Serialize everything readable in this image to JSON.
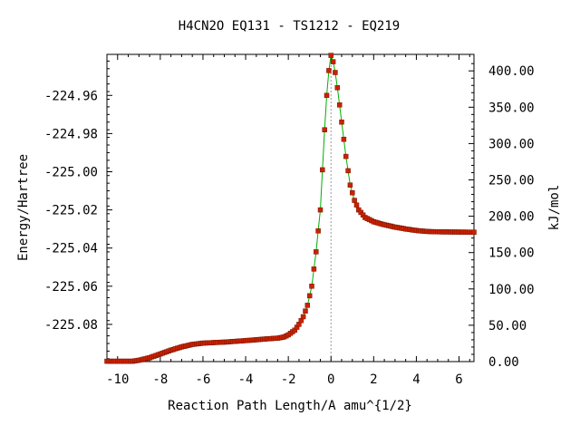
{
  "chart_data": {
    "type": "line",
    "title": "H4CN2O   EQ131 - TS1212 - EQ219",
    "xlabel": "Reaction Path Length/A amu^{1/2}",
    "ylabel": "Energy/Hartree",
    "y2label": "kJ/mol",
    "xlim": [
      -10.5,
      6.7
    ],
    "ylim": [
      -225.0995,
      -224.9385
    ],
    "y2_reference_hartree": -225.0995,
    "hartree_to_kjmol": 2625.5,
    "x_ticks": [
      -10,
      -8,
      -6,
      -4,
      -2,
      0,
      2,
      4,
      6
    ],
    "x_tick_labels": [
      "-10",
      "-8",
      "-6",
      "-4",
      "-2",
      "0",
      "2",
      "4",
      "6"
    ],
    "y_ticks": [
      -224.96,
      -224.98,
      -225.0,
      -225.02,
      -225.04,
      -225.06,
      -225.08
    ],
    "y_tick_labels": [
      "-224.96",
      "-224.98",
      "-225.00",
      "-225.02",
      "-225.04",
      "-225.06",
      "-225.08"
    ],
    "y2_ticks": [
      0,
      50,
      100,
      150,
      200,
      250,
      300,
      350,
      400
    ],
    "y2_tick_labels": [
      "0.00",
      "50.00",
      "100.00",
      "150.00",
      "200.00",
      "250.00",
      "300.00",
      "350.00",
      "400.00"
    ],
    "ts_marker_x": 0,
    "grid": false,
    "legend": "none",
    "colors": {
      "line": "#00b000",
      "marker": "#cc2200",
      "marker_edge": "#7a1500",
      "ts_line": "#999999"
    },
    "curve_knots": [
      [
        -10.5,
        -225.0993
      ],
      [
        -9.3,
        -225.0993
      ],
      [
        -9.0,
        -225.0988
      ],
      [
        -8.5,
        -225.0975
      ],
      [
        -8.0,
        -225.0955
      ],
      [
        -7.5,
        -225.0935
      ],
      [
        -7.0,
        -225.0918
      ],
      [
        -6.5,
        -225.0905
      ],
      [
        -6.0,
        -225.0898
      ],
      [
        -5.0,
        -225.0893
      ],
      [
        -4.0,
        -225.0885
      ],
      [
        -3.0,
        -225.0876
      ],
      [
        -2.5,
        -225.0872
      ],
      [
        -2.2,
        -225.0866
      ],
      [
        -2.0,
        -225.0855
      ],
      [
        -1.7,
        -225.083
      ],
      [
        -1.5,
        -225.08
      ],
      [
        -1.3,
        -225.076
      ],
      [
        -1.1,
        -225.07
      ],
      [
        -0.9,
        -225.06
      ],
      [
        -0.7,
        -225.042
      ],
      [
        -0.5,
        -225.02
      ],
      [
        -0.3,
        -224.978
      ],
      [
        -0.15,
        -224.951
      ],
      [
        0.0,
        -224.939
      ],
      [
        0.15,
        -224.944
      ],
      [
        0.3,
        -224.956
      ],
      [
        0.5,
        -224.974
      ],
      [
        0.7,
        -224.992
      ],
      [
        0.9,
        -225.007
      ],
      [
        1.1,
        -225.015
      ],
      [
        1.3,
        -225.02
      ],
      [
        1.6,
        -225.024
      ],
      [
        2.0,
        -225.0262
      ],
      [
        2.5,
        -225.0278
      ],
      [
        3.0,
        -225.029
      ],
      [
        3.5,
        -225.03
      ],
      [
        4.0,
        -225.0308
      ],
      [
        4.5,
        -225.0313
      ],
      [
        5.0,
        -225.0315
      ],
      [
        6.7,
        -225.0317
      ]
    ]
  }
}
